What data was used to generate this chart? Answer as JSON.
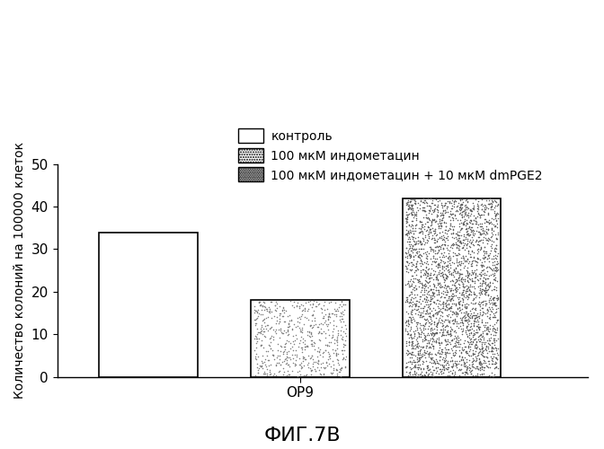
{
  "title": "ФИГ.7В",
  "ylabel": "Количество колоний на 100000 клеток",
  "xlabel_group": "ОР9",
  "ylim": [
    0,
    50
  ],
  "yticks": [
    0,
    10,
    20,
    30,
    40,
    50
  ],
  "bar_values": [
    34,
    18,
    42
  ],
  "bar_labels": [
    "контроль",
    "100 мкМ индометацин",
    "100 мкМ индометацин + 10 мкМ dmPGE2"
  ],
  "bar_positions": [
    1,
    2,
    3
  ],
  "bar_width": 0.65,
  "background_color": "#ffffff",
  "text_color": "#000000",
  "title_fontsize": 16,
  "ylabel_fontsize": 10,
  "tick_fontsize": 11,
  "legend_fontsize": 10,
  "dot_density_bar2": 0.006,
  "dot_density_bar3": 0.012
}
